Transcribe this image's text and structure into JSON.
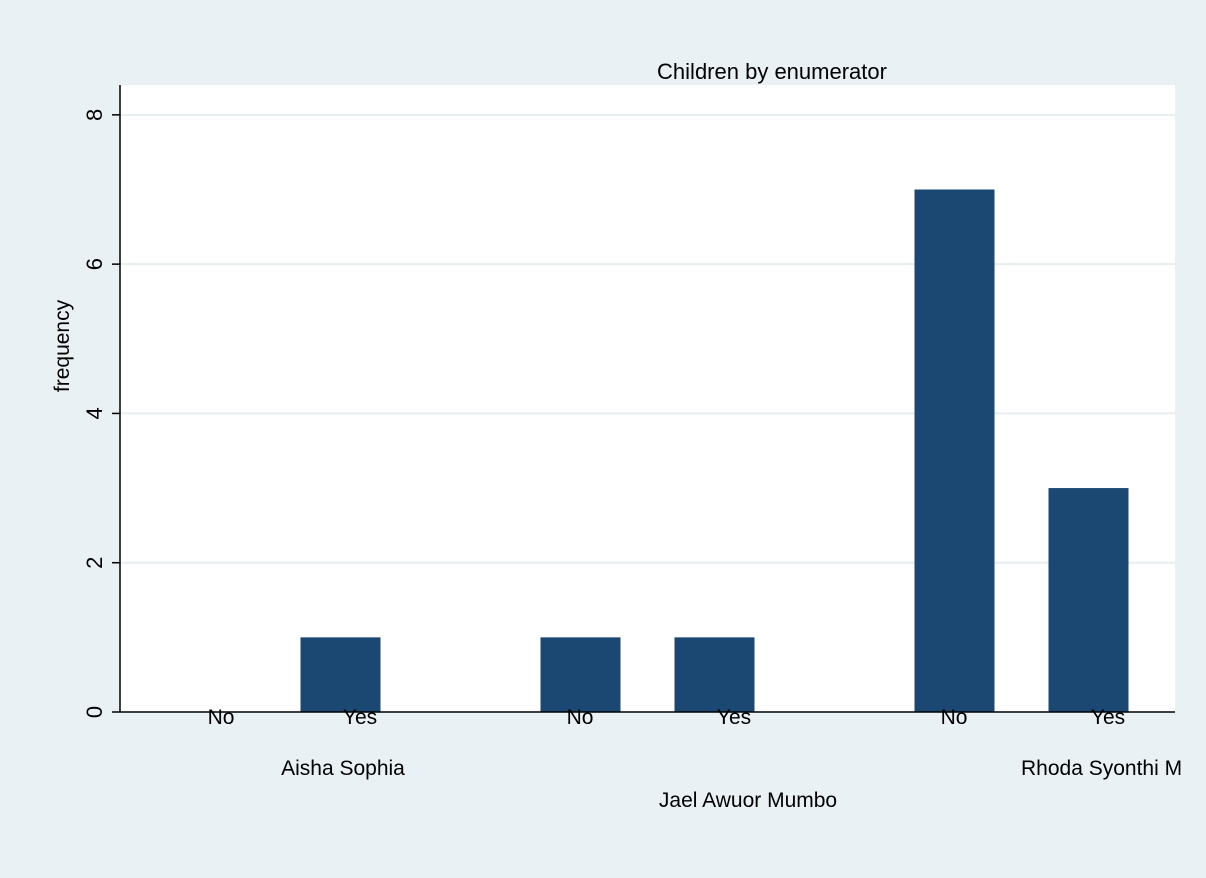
{
  "chart_data": {
    "type": "bar",
    "title": "Children by enumerator",
    "ylabel": "frequency",
    "xlabel": "",
    "ylim": [
      0,
      8.4
    ],
    "yticks": [
      0,
      2,
      4,
      6,
      8
    ],
    "grid": true,
    "bar_color": "#1b4872",
    "groups": [
      {
        "name": "Aisha Sophia",
        "bars": [
          {
            "category": "No",
            "value": 0
          },
          {
            "category": "Yes",
            "value": 1
          }
        ]
      },
      {
        "name": "Jael Awuor Mumbo",
        "bars": [
          {
            "category": "No",
            "value": 1
          },
          {
            "category": "Yes",
            "value": 1
          }
        ]
      },
      {
        "name": "Rhoda Syonthi M",
        "bars": [
          {
            "category": "No",
            "value": 7
          },
          {
            "category": "Yes",
            "value": 3
          }
        ]
      }
    ]
  }
}
